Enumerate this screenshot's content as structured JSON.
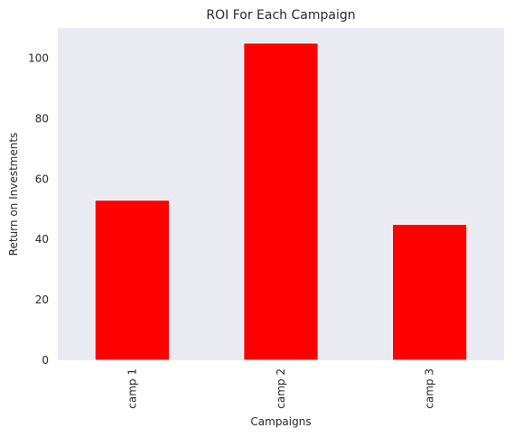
{
  "chart_data": {
    "type": "bar",
    "title": "ROI For Each Campaign",
    "xlabel": "Campaigns",
    "ylabel": "Return on Investments",
    "categories": [
      "camp 1",
      "camp 2",
      "camp 3"
    ],
    "values": [
      53,
      105,
      45
    ],
    "ylim": [
      0,
      110
    ],
    "yticks": [
      0,
      20,
      40,
      60,
      80,
      100
    ],
    "grid": false,
    "legend": "none",
    "colors": {
      "bar": "#ff0000",
      "bar_edge": "#ffffff",
      "plot_background": "#eaeaf2",
      "text": "#262626"
    }
  }
}
